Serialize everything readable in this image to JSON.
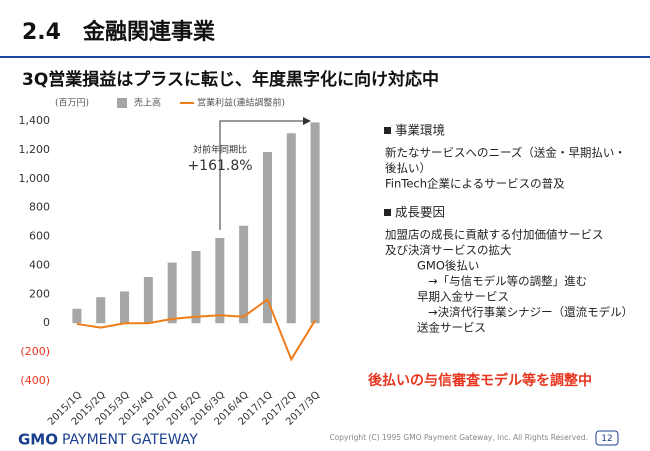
{
  "header": {
    "title": "2.4　金融関連事業"
  },
  "subtitle": "3Q営業損益はプラスに転じ、年度黒字化に向け対応中",
  "chart_data": {
    "type": "combo",
    "unit": "(百万円)",
    "annotation": {
      "label": "対前年同期比",
      "value": "+161.8%"
    },
    "categories": [
      "2015/1Q",
      "2015/2Q",
      "2015/3Q",
      "2015/4Q",
      "2016/1Q",
      "2016/2Q",
      "2016/3Q",
      "2016/4Q",
      "2017/1Q",
      "2017/2Q",
      "2017/3Q"
    ],
    "series": [
      {
        "name": "売上高",
        "type": "bar",
        "color": "#a6a6a6",
        "values": [
          100,
          180,
          220,
          320,
          420,
          500,
          590,
          675,
          1185,
          1315,
          1390
        ]
      },
      {
        "name": "営業利益(連結調整前)",
        "type": "line",
        "color": "#f07d1a",
        "values": [
          -5,
          -30,
          0,
          0,
          30,
          45,
          55,
          45,
          165,
          -250,
          20
        ]
      }
    ],
    "ylim": [
      -400,
      1400
    ],
    "yticks": [
      {
        "value": -400,
        "label": "(400)"
      },
      {
        "value": -200,
        "label": "(200)"
      },
      0,
      200,
      400,
      600,
      800,
      {
        "value": 1000,
        "label": "1,000"
      },
      {
        "value": 1200,
        "label": "1,200"
      },
      {
        "value": 1400,
        "label": "1,400"
      }
    ],
    "grid": false
  },
  "environment": {
    "heading": "事業環境",
    "lines": [
      "新たなサービスへのニーズ（送金・早期払い・",
      "後払い）",
      "FinTech企業によるサービスの普及"
    ]
  },
  "growth": {
    "heading": "成長要因",
    "lines": [
      "加盟店の成長に貢献する付加価値サービス",
      "及び決済サービスの拡大"
    ],
    "items": [
      {
        "name": "GMO後払い",
        "note": "→「与信モデル等の調整」進む"
      },
      {
        "name": "早期入金サービス",
        "note": "→決済代行事業シナジー（還流モデル）"
      },
      {
        "name": "送金サービス"
      }
    ]
  },
  "highlight": "後払いの与信審査モデル等を調整中",
  "footer": {
    "brand": "GMO",
    "company": "PAYMENT GATEWAY",
    "copyright": "Copyright (C) 1995 GMO Payment Gateway, Inc. All Rights Reserved.",
    "page": "12"
  }
}
